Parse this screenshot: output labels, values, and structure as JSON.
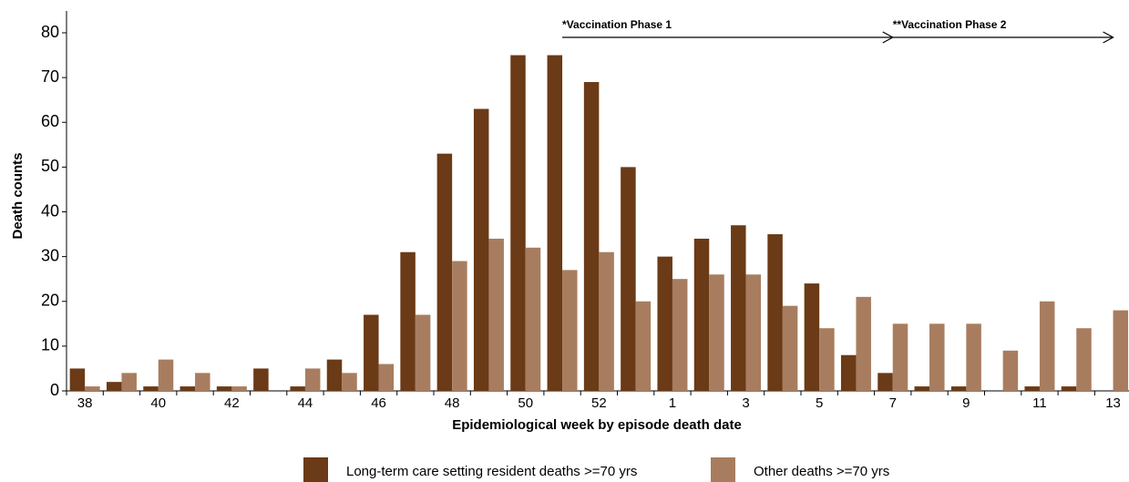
{
  "chart_data": {
    "type": "bar",
    "categories": [
      "38",
      null,
      "40",
      null,
      "42",
      null,
      "44",
      null,
      "46",
      null,
      "48",
      null,
      "50",
      null,
      "52",
      null,
      "1",
      null,
      "3",
      null,
      "5",
      null,
      "7",
      null,
      "9",
      null,
      "11",
      null,
      "13"
    ],
    "series": [
      {
        "name": "Long-term care setting resident deaths >=70 yrs",
        "color": "#6b3a16",
        "values": [
          5,
          2,
          1,
          1,
          1,
          5,
          1,
          7,
          17,
          31,
          53,
          63,
          75,
          75,
          69,
          50,
          30,
          34,
          37,
          35,
          24,
          8,
          4,
          1,
          1,
          0,
          1,
          1,
          0
        ]
      },
      {
        "name": "Other deaths >=70 yrs",
        "color": "#a87d5f",
        "values": [
          1,
          4,
          7,
          4,
          1,
          0,
          5,
          4,
          6,
          17,
          29,
          34,
          32,
          27,
          31,
          20,
          25,
          26,
          26,
          19,
          14,
          21,
          15,
          15,
          15,
          9,
          20,
          14,
          18
        ]
      }
    ],
    "xlabel": "Epidemiological week by episode death date",
    "ylabel": "Death counts",
    "ylim": [
      0,
      80
    ],
    "yticks": [
      0,
      10,
      20,
      30,
      40,
      50,
      60,
      70,
      80
    ],
    "annotations": [
      "*Vaccination Phase 1",
      "**Vaccination Phase 2"
    ],
    "legend": "bottom"
  }
}
